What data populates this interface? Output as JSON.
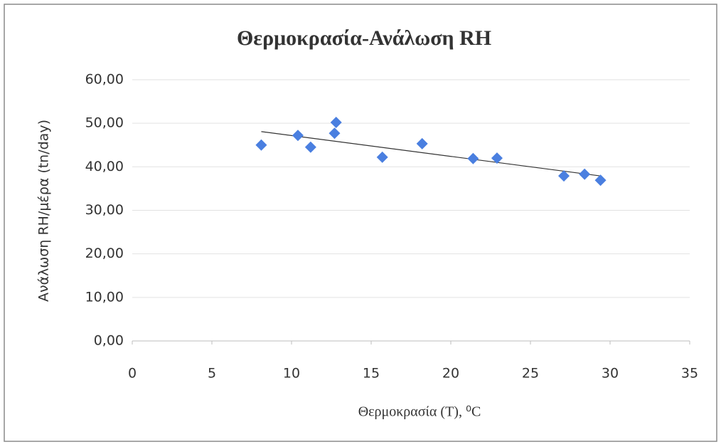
{
  "chart_data": {
    "type": "scatter",
    "title": "Θερμοκρασία-Ανάλωση RH",
    "x_label": "Θερμοκρασία (T), ⁰C",
    "y_label": "Ανάλωση RH/μέρα (tn/day)",
    "series": [
      {
        "name": "Ανάλωση RH",
        "color": "#4a7fe0",
        "x": [
          8.1,
          10.4,
          11.2,
          12.7,
          12.8,
          15.7,
          18.2,
          21.4,
          22.9,
          27.1,
          28.4,
          29.4
        ],
        "values": [
          45.0,
          47.2,
          44.5,
          47.7,
          50.2,
          42.2,
          45.3,
          41.9,
          42.0,
          37.9,
          38.3,
          36.9
        ]
      }
    ],
    "trendline": "linear",
    "xlim": [
      0,
      35
    ],
    "xticks": [
      0,
      5,
      10,
      15,
      20,
      25,
      30,
      35
    ],
    "ylim": [
      0,
      60
    ],
    "yticks": [
      {
        "value": 0,
        "label": "0,00"
      },
      {
        "value": 10,
        "label": "10,00"
      },
      {
        "value": 20,
        "label": "20,00"
      },
      {
        "value": 30,
        "label": "30,00"
      },
      {
        "value": 40,
        "label": "40,00"
      },
      {
        "value": 50,
        "label": "50,00"
      },
      {
        "value": 60,
        "label": "60,00"
      }
    ],
    "grid": true
  }
}
